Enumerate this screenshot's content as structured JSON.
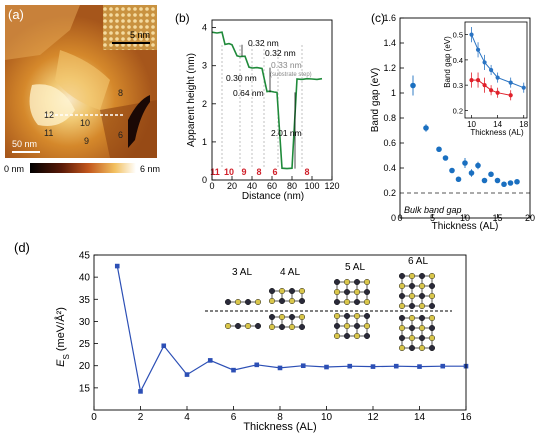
{
  "panel_labels": {
    "a": "(a)",
    "b": "(b)",
    "c": "(c)",
    "d": "(d)"
  },
  "panel_a": {
    "scale_main": "50 nm",
    "scale_inset": "5 nm",
    "terrace_numbers": [
      "12",
      "11",
      "10",
      "9",
      "8",
      "6"
    ],
    "colorbar_min": "0 nm",
    "colorbar_max": "6 nm"
  },
  "chart_data": [
    {
      "id": "b",
      "type": "line",
      "xlabel": "Distance (nm)",
      "ylabel": "Apparent height (nm)",
      "xlim": [
        0,
        120
      ],
      "ylim": [
        0,
        4.2
      ],
      "xticks": [
        0,
        20,
        40,
        60,
        80,
        100,
        120
      ],
      "yticks": [
        0,
        1,
        2,
        3,
        4
      ],
      "profile": {
        "x": [
          0,
          5,
          10,
          13,
          17,
          20,
          25,
          28,
          33,
          37,
          40,
          45,
          50,
          55,
          58,
          62,
          65,
          70,
          75,
          80,
          85,
          90,
          95,
          100,
          105,
          110
        ],
        "y": [
          3.88,
          3.86,
          3.88,
          3.56,
          3.58,
          3.55,
          3.26,
          3.24,
          3.25,
          2.96,
          2.94,
          2.95,
          2.93,
          2.32,
          2.33,
          2.31,
          2.3,
          0.31,
          0.3,
          0.31,
          2.65,
          2.64,
          2.66,
          2.65,
          2.64,
          2.66
        ]
      },
      "annotations": [
        "0.32 nm",
        "0.32 nm",
        "0.33 nm",
        "(substrate step)",
        "0.30 nm",
        "0.64 nm",
        "2.01 nm"
      ],
      "layer_labels": [
        "11",
        "10",
        "9",
        "8",
        "6",
        "8"
      ]
    },
    {
      "id": "c",
      "type": "scatter",
      "xlabel": "Thickness (AL)",
      "ylabel": "Band gap (eV)",
      "xlim": [
        0,
        20
      ],
      "ylim": [
        0,
        1.6
      ],
      "xticks": [
        0,
        5,
        10,
        15,
        20
      ],
      "yticks": [
        0,
        0.2,
        0.4,
        0.6,
        0.8,
        1,
        1.2,
        1.4,
        1.6
      ],
      "bulk_gap_label": "Bulk band gap",
      "bulk_gap_value": 0.2,
      "series": [
        {
          "x": [
            2,
            4,
            6,
            7,
            8,
            9,
            10,
            11,
            12,
            13,
            14,
            15,
            16,
            17,
            18
          ],
          "y": [
            1.06,
            0.72,
            0.55,
            0.48,
            0.38,
            0.31,
            0.44,
            0.36,
            0.42,
            0.3,
            0.35,
            0.3,
            0.27,
            0.28,
            0.29
          ],
          "err": [
            0.08,
            0.03,
            0.02,
            0.02,
            0.02,
            0.02,
            0.04,
            0.03,
            0.03,
            0.02,
            0.02,
            0.02,
            0.02,
            0.02,
            0.02
          ]
        }
      ],
      "inset": {
        "xlabel": "Thickness (AL)",
        "ylabel": "Band gap (eV)",
        "xlim": [
          9,
          18.5
        ],
        "ylim": [
          0.17,
          0.55
        ],
        "xticks": [
          10,
          14,
          18
        ],
        "yticks": [
          0.2,
          0.3,
          0.4,
          0.5
        ],
        "series": [
          {
            "color": "#2a74c3",
            "x": [
              10,
              11,
              12,
              13,
              14,
              16,
              18
            ],
            "y": [
              0.5,
              0.44,
              0.39,
              0.36,
              0.33,
              0.31,
              0.29
            ],
            "err": [
              0.03,
              0.03,
              0.03,
              0.02,
              0.02,
              0.02,
              0.02
            ]
          },
          {
            "color": "#e0202a",
            "x": [
              10,
              11,
              12,
              13,
              14,
              16
            ],
            "y": [
              0.32,
              0.32,
              0.3,
              0.28,
              0.27,
              0.26
            ],
            "err": [
              0.03,
              0.03,
              0.03,
              0.02,
              0.02,
              0.02
            ]
          }
        ]
      }
    },
    {
      "id": "d",
      "type": "line",
      "xlabel": "Thickness (AL)",
      "ylabel_symbol": "E",
      "ylabel_sub": "S",
      "ylabel_unit": " (meV/Å²)",
      "xlim": [
        0,
        16
      ],
      "ylim": [
        10,
        45
      ],
      "xticks": [
        0,
        2,
        4,
        6,
        8,
        10,
        12,
        14,
        16
      ],
      "yticks": [
        15,
        20,
        25,
        30,
        35,
        40,
        45
      ],
      "color": "#2c4fb5",
      "x": [
        1,
        2,
        3,
        4,
        5,
        6,
        7,
        8,
        9,
        10,
        11,
        12,
        13,
        14,
        15,
        16
      ],
      "y": [
        42.5,
        14.2,
        24.5,
        18.0,
        21.2,
        19.0,
        20.2,
        19.5,
        20.0,
        19.7,
        19.9,
        19.8,
        19.9,
        19.8,
        19.9,
        19.9
      ],
      "structure_labels": [
        "3 AL",
        "4 AL",
        "5 AL",
        "6 AL"
      ]
    }
  ]
}
